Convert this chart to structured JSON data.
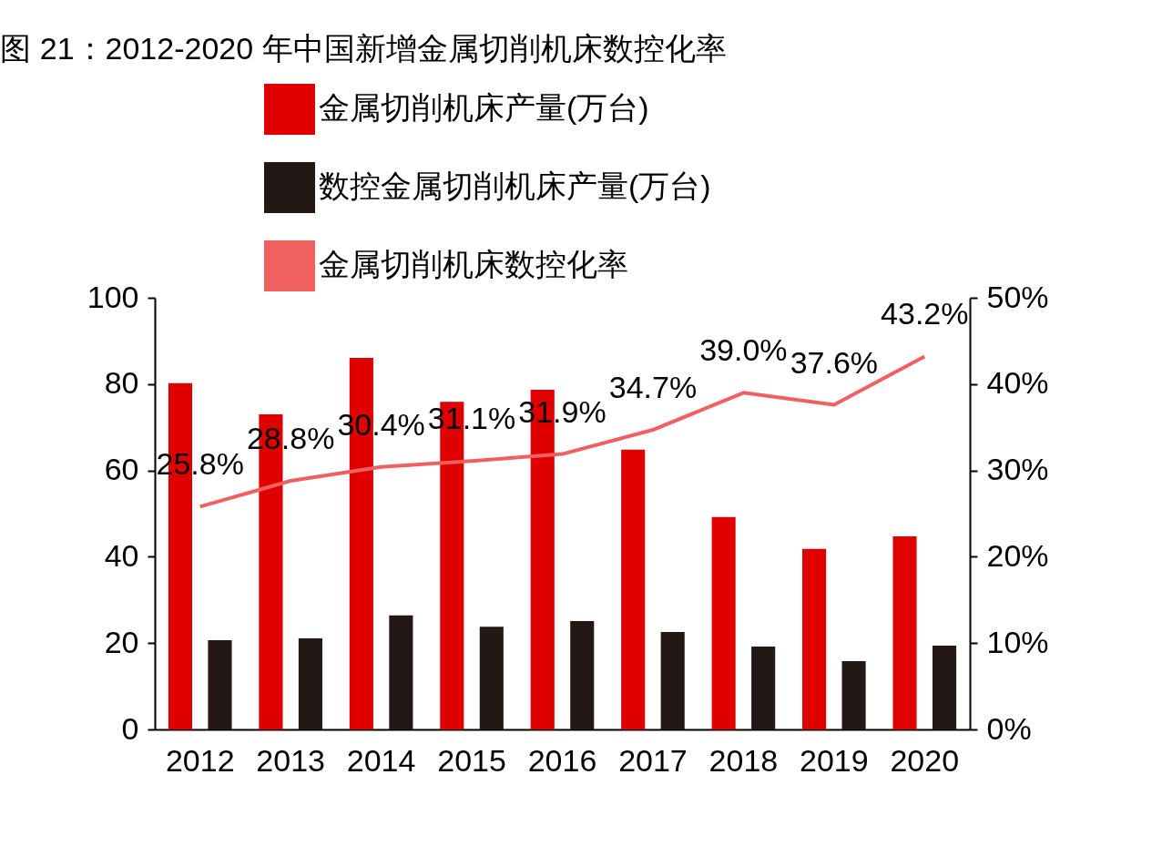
{
  "chart_data": {
    "type": "bar",
    "title": "图 21：2012-2020 年中国新增金属切削机床数控化率",
    "categories": [
      "2012",
      "2013",
      "2014",
      "2015",
      "2016",
      "2017",
      "2018",
      "2019",
      "2020"
    ],
    "series": [
      {
        "name": "金属切削机床产量(万台)",
        "color": "#e00000",
        "values": [
          80.2,
          73.0,
          86.1,
          75.9,
          78.7,
          64.8,
          49.2,
          41.8,
          44.7
        ]
      },
      {
        "name": "数控金属切削机床产量(万台)",
        "color": "#231815",
        "values": [
          20.7,
          21.1,
          26.4,
          23.8,
          25.1,
          22.6,
          19.2,
          15.8,
          19.4
        ]
      },
      {
        "name": "金属切削机床数控化率",
        "type": "line",
        "axis": "y2",
        "color": "#f06060",
        "values": [
          25.8,
          28.8,
          30.4,
          31.1,
          31.9,
          34.7,
          39.0,
          37.6,
          43.2
        ],
        "value_labels": [
          "25.8%",
          "28.8%",
          "30.4%",
          "31.1%",
          "31.9%",
          "34.7%",
          "39.0%",
          "37.6%",
          "43.2%"
        ]
      }
    ],
    "ylim": [
      0,
      100
    ],
    "yticks": [
      0,
      20,
      40,
      60,
      80,
      100
    ],
    "y2lim": [
      0,
      50
    ],
    "y2ticks": [
      {
        "value": 0,
        "label": "0%"
      },
      {
        "value": 10,
        "label": "10%"
      },
      {
        "value": 20,
        "label": "20%"
      },
      {
        "value": 30,
        "label": "30%"
      },
      {
        "value": 40,
        "label": "40%"
      },
      {
        "value": 50,
        "label": "50%"
      }
    ],
    "legend": "top",
    "grid": false
  }
}
